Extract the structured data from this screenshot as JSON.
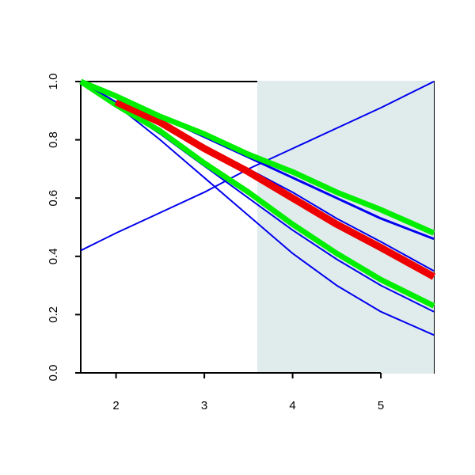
{
  "chart_data": {
    "type": "line",
    "x": [
      1.6,
      2.0,
      2.5,
      3.0,
      3.5,
      4.0,
      4.5,
      5.0,
      5.6
    ],
    "series": [
      {
        "color": "#0000ee",
        "line_width": 2,
        "values": [
          0.42,
          0.48,
          0.55,
          0.62,
          0.7,
          0.77,
          0.84,
          0.91,
          1.0
        ]
      },
      {
        "color": "#0000ee",
        "line_width": 2,
        "values": [
          1.0,
          0.92,
          0.8,
          0.67,
          0.54,
          0.41,
          0.3,
          0.21,
          0.13
        ]
      },
      {
        "color": "#0000ee",
        "line_width": 2,
        "values": [
          1.0,
          0.92,
          0.82,
          0.71,
          0.6,
          0.49,
          0.39,
          0.3,
          0.21
        ]
      },
      {
        "color": "#00ee00",
        "line_width": 7,
        "values": [
          1.0,
          0.92,
          0.83,
          0.72,
          0.62,
          0.51,
          0.41,
          0.32,
          0.23
        ]
      },
      {
        "color": "#0000ee",
        "line_width": 2,
        "values": [
          1.0,
          0.93,
          0.86,
          0.78,
          0.7,
          0.62,
          0.53,
          0.45,
          0.35
        ]
      },
      {
        "color": "#ee0000",
        "line_width": 9,
        "values": [
          null,
          0.93,
          0.86,
          0.77,
          0.69,
          0.6,
          0.51,
          0.43,
          0.33
        ]
      },
      {
        "color": "#0000ee",
        "line_width": 3,
        "values": [
          1.0,
          0.95,
          0.88,
          0.81,
          0.74,
          0.67,
          0.6,
          0.53,
          0.46
        ]
      },
      {
        "color": "#00ee00",
        "line_width": 7,
        "values": [
          1.0,
          0.95,
          0.88,
          0.82,
          0.75,
          0.69,
          0.62,
          0.56,
          0.48
        ]
      }
    ],
    "shaded_region": {
      "x": [
        3.6,
        5.6
      ],
      "color": "#e0ecec"
    },
    "xlim": [
      1.6,
      5.6
    ],
    "ylim": [
      0,
      1
    ],
    "xticks": [
      2,
      3,
      4,
      5
    ],
    "yticks": [
      {
        "value": 0,
        "label": "0.0"
      },
      0.2,
      0.4,
      0.6,
      0.8,
      {
        "value": 1,
        "label": "1.0"
      }
    ]
  }
}
